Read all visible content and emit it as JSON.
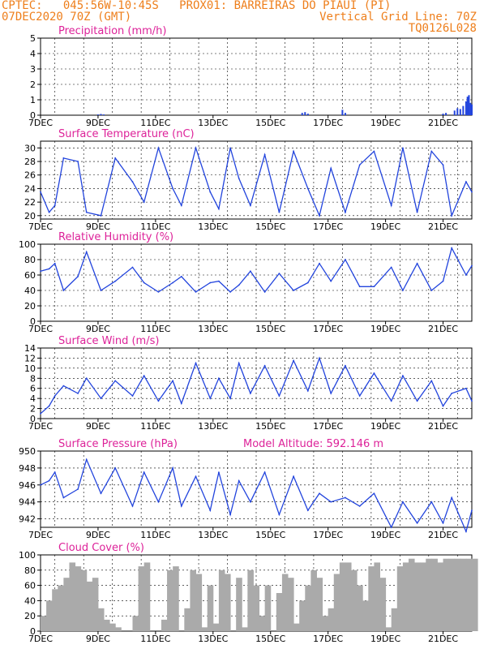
{
  "header": {
    "line1_left": "CPTEC:   045:56W-10:45S   PROX01: BARREIRAS DO PIAUI (PI)",
    "line2_left": "07DEC2020 70Z (GMT)",
    "line2_right": "Vertical Grid Line: 70Z",
    "line3_right": "TQ0126L028",
    "accent_color": "#ee7f1c",
    "title_color": "#dd2299",
    "line_color": "#2244dd",
    "fill_color": "#aaaaaa"
  },
  "chart_data": [
    {
      "type": "bar",
      "title": "Precipitation (mm/h)",
      "ylim": [
        0,
        5
      ],
      "yticks": [
        "0",
        "1",
        "2",
        "3",
        "4",
        "5"
      ],
      "xticks": [
        "7DEC",
        "9DEC",
        "11DEC",
        "13DEC",
        "15DEC",
        "17DEC",
        "19DEC",
        "21DEC"
      ],
      "x_range_days": [
        7,
        22
      ],
      "series": [
        {
          "values": [
            [
              9.0,
              0.05
            ],
            [
              9.1,
              0.08
            ],
            [
              9.2,
              0.05
            ],
            [
              16.1,
              0.15
            ],
            [
              16.2,
              0.2
            ],
            [
              16.3,
              0.1
            ],
            [
              17.5,
              0.35
            ],
            [
              17.6,
              0.15
            ],
            [
              21.0,
              0.1
            ],
            [
              21.1,
              0.15
            ],
            [
              21.4,
              0.3
            ],
            [
              21.5,
              0.45
            ],
            [
              21.6,
              0.4
            ],
            [
              21.7,
              0.6
            ],
            [
              21.8,
              0.9
            ],
            [
              21.85,
              1.2
            ],
            [
              21.9,
              1.3
            ],
            [
              21.95,
              0.8
            ],
            [
              22.0,
              0.7
            ]
          ]
        }
      ]
    },
    {
      "type": "line",
      "title": "Surface Temperature (nC)",
      "ylim": [
        19.5,
        31
      ],
      "yticks": [
        "20",
        "22",
        "24",
        "26",
        "28",
        "30"
      ],
      "xticks": [
        "7DEC",
        "9DEC",
        "11DEC",
        "13DEC",
        "15DEC",
        "17DEC",
        "19DEC",
        "21DEC"
      ],
      "x_range_days": [
        7,
        22
      ],
      "series": [
        {
          "values": [
            [
              7.0,
              23.5
            ],
            [
              7.3,
              20.5
            ],
            [
              7.5,
              21.5
            ],
            [
              7.8,
              28.5
            ],
            [
              8.3,
              28.0
            ],
            [
              8.6,
              20.5
            ],
            [
              9.1,
              20.0
            ],
            [
              9.6,
              28.5
            ],
            [
              10.2,
              25.0
            ],
            [
              10.6,
              22.0
            ],
            [
              11.1,
              30.0
            ],
            [
              11.6,
              24.0
            ],
            [
              11.9,
              21.5
            ],
            [
              12.4,
              30.0
            ],
            [
              12.9,
              23.5
            ],
            [
              13.2,
              21.0
            ],
            [
              13.6,
              30.0
            ],
            [
              13.9,
              25.5
            ],
            [
              14.3,
              21.5
            ],
            [
              14.8,
              29.0
            ],
            [
              15.3,
              20.5
            ],
            [
              15.8,
              29.5
            ],
            [
              16.3,
              24.0
            ],
            [
              16.7,
              20.0
            ],
            [
              17.1,
              27.0
            ],
            [
              17.6,
              20.5
            ],
            [
              18.1,
              27.5
            ],
            [
              18.6,
              29.5
            ],
            [
              19.2,
              21.5
            ],
            [
              19.6,
              30.0
            ],
            [
              20.1,
              20.5
            ],
            [
              20.6,
              29.5
            ],
            [
              21.0,
              27.5
            ],
            [
              21.3,
              20.0
            ],
            [
              21.8,
              25.0
            ],
            [
              22.0,
              23.5
            ]
          ]
        }
      ]
    },
    {
      "type": "line",
      "title": "Relative Humidity (%)",
      "ylim": [
        0,
        100
      ],
      "yticks": [
        "0",
        "20",
        "40",
        "60",
        "80",
        "100"
      ],
      "xticks": [
        "7DEC",
        "9DEC",
        "11DEC",
        "13DEC",
        "15DEC",
        "17DEC",
        "19DEC",
        "21DEC"
      ],
      "x_range_days": [
        7,
        22
      ],
      "series": [
        {
          "values": [
            [
              7.0,
              65
            ],
            [
              7.3,
              68
            ],
            [
              7.5,
              75
            ],
            [
              7.8,
              40
            ],
            [
              8.3,
              58
            ],
            [
              8.6,
              90
            ],
            [
              9.1,
              40
            ],
            [
              9.6,
              52
            ],
            [
              10.2,
              70
            ],
            [
              10.6,
              50
            ],
            [
              11.1,
              38
            ],
            [
              11.6,
              50
            ],
            [
              11.9,
              58
            ],
            [
              12.4,
              38
            ],
            [
              12.9,
              50
            ],
            [
              13.2,
              52
            ],
            [
              13.6,
              38
            ],
            [
              13.9,
              47
            ],
            [
              14.3,
              65
            ],
            [
              14.8,
              38
            ],
            [
              15.3,
              62
            ],
            [
              15.8,
              40
            ],
            [
              16.3,
              50
            ],
            [
              16.7,
              75
            ],
            [
              17.1,
              52
            ],
            [
              17.6,
              80
            ],
            [
              18.1,
              45
            ],
            [
              18.6,
              45
            ],
            [
              19.2,
              70
            ],
            [
              19.6,
              40
            ],
            [
              20.1,
              75
            ],
            [
              20.6,
              40
            ],
            [
              21.0,
              52
            ],
            [
              21.3,
              95
            ],
            [
              21.8,
              60
            ],
            [
              22.0,
              72
            ]
          ]
        }
      ]
    },
    {
      "type": "line",
      "title": "Surface Wind (m/s)",
      "ylim": [
        0,
        14
      ],
      "yticks": [
        "0",
        "2",
        "4",
        "6",
        "8",
        "10",
        "12",
        "14"
      ],
      "xticks": [
        "7DEC",
        "9DEC",
        "11DEC",
        "13DEC",
        "15DEC",
        "17DEC",
        "19DEC",
        "21DEC"
      ],
      "x_range_days": [
        7,
        22
      ],
      "series": [
        {
          "values": [
            [
              7.0,
              1.0
            ],
            [
              7.3,
              2.5
            ],
            [
              7.5,
              4.5
            ],
            [
              7.8,
              6.5
            ],
            [
              8.3,
              5.0
            ],
            [
              8.6,
              8.0
            ],
            [
              9.1,
              4.0
            ],
            [
              9.6,
              7.5
            ],
            [
              10.2,
              4.5
            ],
            [
              10.6,
              8.5
            ],
            [
              11.1,
              3.5
            ],
            [
              11.6,
              7.5
            ],
            [
              11.9,
              3.0
            ],
            [
              12.4,
              11.0
            ],
            [
              12.9,
              4.0
            ],
            [
              13.2,
              8.0
            ],
            [
              13.6,
              4.0
            ],
            [
              13.9,
              11.0
            ],
            [
              14.3,
              5.0
            ],
            [
              14.8,
              10.5
            ],
            [
              15.3,
              4.5
            ],
            [
              15.8,
              11.5
            ],
            [
              16.3,
              5.5
            ],
            [
              16.7,
              12.0
            ],
            [
              17.1,
              5.0
            ],
            [
              17.6,
              10.5
            ],
            [
              18.1,
              4.5
            ],
            [
              18.6,
              9.0
            ],
            [
              19.2,
              3.5
            ],
            [
              19.6,
              8.5
            ],
            [
              20.1,
              3.5
            ],
            [
              20.6,
              7.5
            ],
            [
              21.0,
              2.5
            ],
            [
              21.3,
              5.0
            ],
            [
              21.8,
              6.0
            ],
            [
              22.0,
              3.5
            ]
          ]
        }
      ]
    },
    {
      "type": "line",
      "title": "Surface Pressure (hPa)",
      "annotation": "Model Altitude: 592.146 m",
      "ylim": [
        941,
        950
      ],
      "yticks": [
        "942",
        "944",
        "946",
        "948",
        "950"
      ],
      "xticks": [
        "7DEC",
        "9DEC",
        "11DEC",
        "13DEC",
        "15DEC",
        "17DEC",
        "19DEC",
        "21DEC"
      ],
      "x_range_days": [
        7,
        22
      ],
      "series": [
        {
          "values": [
            [
              7.0,
              946.0
            ],
            [
              7.3,
              946.5
            ],
            [
              7.5,
              947.5
            ],
            [
              7.8,
              944.5
            ],
            [
              8.3,
              945.5
            ],
            [
              8.6,
              949.0
            ],
            [
              9.1,
              945.0
            ],
            [
              9.6,
              948.0
            ],
            [
              10.2,
              943.5
            ],
            [
              10.6,
              947.5
            ],
            [
              11.1,
              944.0
            ],
            [
              11.6,
              948.0
            ],
            [
              11.9,
              943.5
            ],
            [
              12.4,
              947.0
            ],
            [
              12.9,
              943.0
            ],
            [
              13.2,
              947.5
            ],
            [
              13.6,
              942.5
            ],
            [
              13.9,
              946.5
            ],
            [
              14.3,
              944.0
            ],
            [
              14.8,
              947.5
            ],
            [
              15.3,
              942.5
            ],
            [
              15.8,
              947.0
            ],
            [
              16.3,
              943.0
            ],
            [
              16.7,
              945.0
            ],
            [
              17.1,
              944.0
            ],
            [
              17.6,
              944.5
            ],
            [
              18.1,
              943.5
            ],
            [
              18.6,
              945.0
            ],
            [
              19.2,
              941.0
            ],
            [
              19.6,
              944.0
            ],
            [
              20.1,
              941.5
            ],
            [
              20.6,
              944.0
            ],
            [
              21.0,
              941.5
            ],
            [
              21.3,
              944.5
            ],
            [
              21.8,
              940.5
            ],
            [
              22.0,
              943.0
            ]
          ]
        }
      ]
    },
    {
      "type": "area",
      "title": "Cloud Cover (%)",
      "ylim": [
        0,
        100
      ],
      "yticks": [
        "0",
        "20",
        "40",
        "60",
        "80",
        "100"
      ],
      "xticks": [
        "7DEC",
        "9DEC",
        "11DEC",
        "13DEC",
        "15DEC",
        "17DEC",
        "19DEC",
        "21DEC"
      ],
      "x_range_days": [
        7,
        22
      ],
      "series": [
        {
          "values": [
            [
              7.0,
              20
            ],
            [
              7.2,
              40
            ],
            [
              7.4,
              55
            ],
            [
              7.6,
              60
            ],
            [
              7.8,
              70
            ],
            [
              8.0,
              90
            ],
            [
              8.2,
              85
            ],
            [
              8.4,
              80
            ],
            [
              8.6,
              65
            ],
            [
              8.8,
              70
            ],
            [
              9.0,
              30
            ],
            [
              9.2,
              15
            ],
            [
              9.4,
              10
            ],
            [
              9.6,
              5
            ],
            [
              9.8,
              0
            ],
            [
              10.0,
              0
            ],
            [
              10.2,
              20
            ],
            [
              10.4,
              85
            ],
            [
              10.6,
              90
            ],
            [
              10.8,
              0
            ],
            [
              11.0,
              0
            ],
            [
              11.2,
              15
            ],
            [
              11.4,
              80
            ],
            [
              11.6,
              85
            ],
            [
              11.8,
              0
            ],
            [
              12.0,
              30
            ],
            [
              12.2,
              80
            ],
            [
              12.4,
              75
            ],
            [
              12.6,
              5
            ],
            [
              12.8,
              60
            ],
            [
              13.0,
              10
            ],
            [
              13.2,
              80
            ],
            [
              13.4,
              75
            ],
            [
              13.6,
              0
            ],
            [
              13.8,
              70
            ],
            [
              14.0,
              5
            ],
            [
              14.2,
              80
            ],
            [
              14.4,
              60
            ],
            [
              14.6,
              20
            ],
            [
              14.8,
              60
            ],
            [
              15.0,
              0
            ],
            [
              15.2,
              50
            ],
            [
              15.4,
              75
            ],
            [
              15.6,
              70
            ],
            [
              15.8,
              10
            ],
            [
              16.0,
              40
            ],
            [
              16.2,
              60
            ],
            [
              16.4,
              80
            ],
            [
              16.6,
              70
            ],
            [
              16.8,
              20
            ],
            [
              17.0,
              30
            ],
            [
              17.2,
              75
            ],
            [
              17.4,
              90
            ],
            [
              17.6,
              90
            ],
            [
              17.8,
              80
            ],
            [
              18.0,
              60
            ],
            [
              18.2,
              40
            ],
            [
              18.4,
              85
            ],
            [
              18.6,
              90
            ],
            [
              18.8,
              70
            ],
            [
              19.0,
              5
            ],
            [
              19.2,
              30
            ],
            [
              19.4,
              85
            ],
            [
              19.6,
              90
            ],
            [
              19.8,
              95
            ],
            [
              20.0,
              90
            ],
            [
              20.2,
              90
            ],
            [
              20.4,
              95
            ],
            [
              20.6,
              95
            ],
            [
              20.8,
              90
            ],
            [
              21.0,
              95
            ],
            [
              21.2,
              95
            ],
            [
              21.4,
              95
            ],
            [
              21.6,
              95
            ],
            [
              21.8,
              95
            ],
            [
              22.0,
              95
            ]
          ]
        }
      ]
    }
  ]
}
